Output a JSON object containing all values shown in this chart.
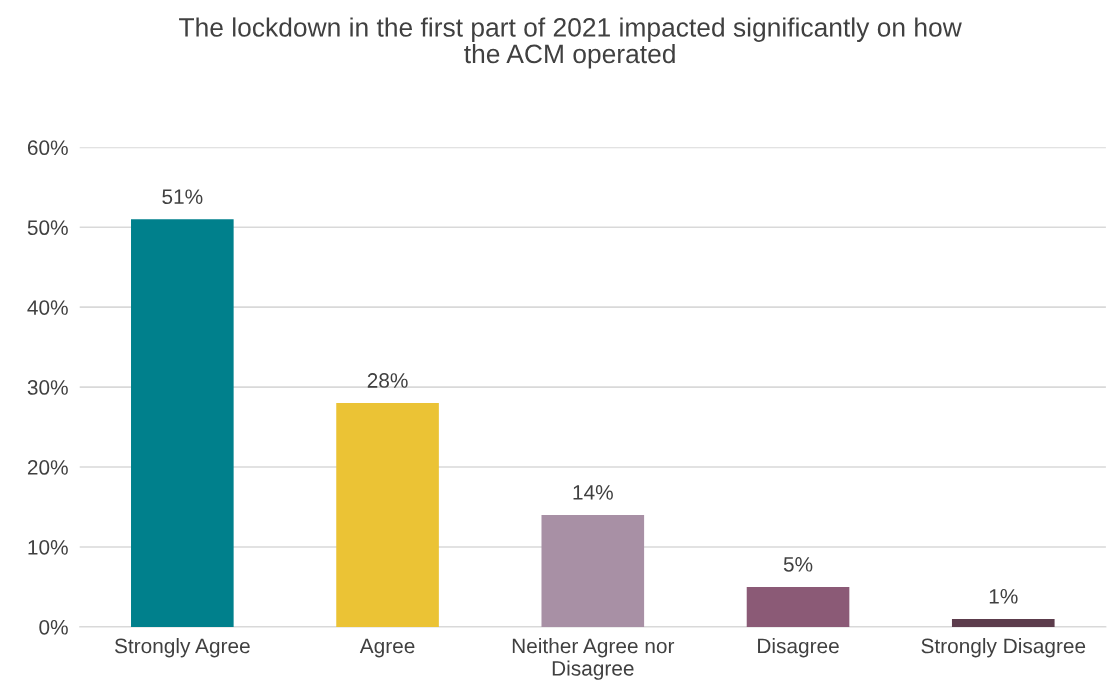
{
  "chart_data": {
    "type": "bar",
    "title": "The lockdown in the first part of 2021 impacted significantly on how the ACM operated",
    "categories": [
      "Strongly Agree",
      "Agree",
      "Neither Agree nor Disagree",
      "Disagree",
      "Strongly Disagree"
    ],
    "values": [
      51,
      28,
      14,
      5,
      1
    ],
    "value_labels": [
      "51%",
      "28%",
      "14%",
      "5%",
      "1%"
    ],
    "colors": [
      "#00808c",
      "#ebc335",
      "#a890a5",
      "#8b5a76",
      "#5c3c4c"
    ],
    "ylim": [
      0,
      60
    ],
    "yticks": [
      {
        "value": 0,
        "label": "0%"
      },
      {
        "value": 10,
        "label": "10%"
      },
      {
        "value": 20,
        "label": "20%"
      },
      {
        "value": 30,
        "label": "30%"
      },
      {
        "value": 40,
        "label": "40%"
      },
      {
        "value": 50,
        "label": "50%"
      },
      {
        "value": 60,
        "label": "60%"
      }
    ],
    "grid": "y",
    "legend": false
  }
}
